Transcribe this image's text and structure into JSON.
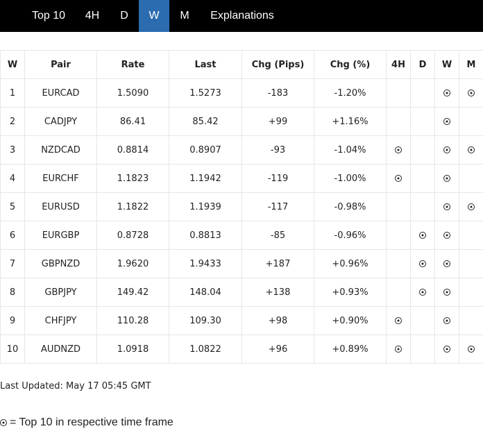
{
  "tabs": [
    {
      "label": "Top 10",
      "active": false
    },
    {
      "label": "4H",
      "active": false
    },
    {
      "label": "D",
      "active": false
    },
    {
      "label": "W",
      "active": true
    },
    {
      "label": "M",
      "active": false
    },
    {
      "label": "Explanations",
      "active": false
    }
  ],
  "table": {
    "columns": [
      "W",
      "Pair",
      "Rate",
      "Last",
      "Chg (Pips)",
      "Chg (%)",
      "4H",
      "D",
      "W",
      "M"
    ],
    "rows": [
      {
        "rank": "1",
        "pair": "EURCAD",
        "rate": "1.5090",
        "last": "1.5273",
        "chg_pips": "-183",
        "chg_pct": "-1.20%",
        "h4": false,
        "d": false,
        "w": true,
        "m": true
      },
      {
        "rank": "2",
        "pair": "CADJPY",
        "rate": "86.41",
        "last": "85.42",
        "chg_pips": "+99",
        "chg_pct": "+1.16%",
        "h4": false,
        "d": false,
        "w": true,
        "m": false
      },
      {
        "rank": "3",
        "pair": "NZDCAD",
        "rate": "0.8814",
        "last": "0.8907",
        "chg_pips": "-93",
        "chg_pct": "-1.04%",
        "h4": true,
        "d": false,
        "w": true,
        "m": true
      },
      {
        "rank": "4",
        "pair": "EURCHF",
        "rate": "1.1823",
        "last": "1.1942",
        "chg_pips": "-119",
        "chg_pct": "-1.00%",
        "h4": true,
        "d": false,
        "w": true,
        "m": false
      },
      {
        "rank": "5",
        "pair": "EURUSD",
        "rate": "1.1822",
        "last": "1.1939",
        "chg_pips": "-117",
        "chg_pct": "-0.98%",
        "h4": false,
        "d": false,
        "w": true,
        "m": true
      },
      {
        "rank": "6",
        "pair": "EURGBP",
        "rate": "0.8728",
        "last": "0.8813",
        "chg_pips": "-85",
        "chg_pct": "-0.96%",
        "h4": false,
        "d": true,
        "w": true,
        "m": false
      },
      {
        "rank": "7",
        "pair": "GBPNZD",
        "rate": "1.9620",
        "last": "1.9433",
        "chg_pips": "+187",
        "chg_pct": "+0.96%",
        "h4": false,
        "d": true,
        "w": true,
        "m": false
      },
      {
        "rank": "8",
        "pair": "GBPJPY",
        "rate": "149.42",
        "last": "148.04",
        "chg_pips": "+138",
        "chg_pct": "+0.93%",
        "h4": false,
        "d": true,
        "w": true,
        "m": false
      },
      {
        "rank": "9",
        "pair": "CHFJPY",
        "rate": "110.28",
        "last": "109.30",
        "chg_pips": "+98",
        "chg_pct": "+0.90%",
        "h4": true,
        "d": false,
        "w": true,
        "m": false
      },
      {
        "rank": "10",
        "pair": "AUDNZD",
        "rate": "1.0918",
        "last": "1.0822",
        "chg_pips": "+96",
        "chg_pct": "+0.89%",
        "h4": true,
        "d": false,
        "w": true,
        "m": true
      }
    ]
  },
  "footer": {
    "last_updated": "Last Updated: May 17 05:45 GMT",
    "legend_text": "= Top 10 in respective time frame",
    "legend_icon": "target-dot-icon"
  },
  "colors": {
    "tabbar_bg": "#000000",
    "active_tab_bg": "#2b6cb0",
    "tab_text": "#ffffff",
    "border": "#e6e6e6",
    "text": "#222222"
  }
}
